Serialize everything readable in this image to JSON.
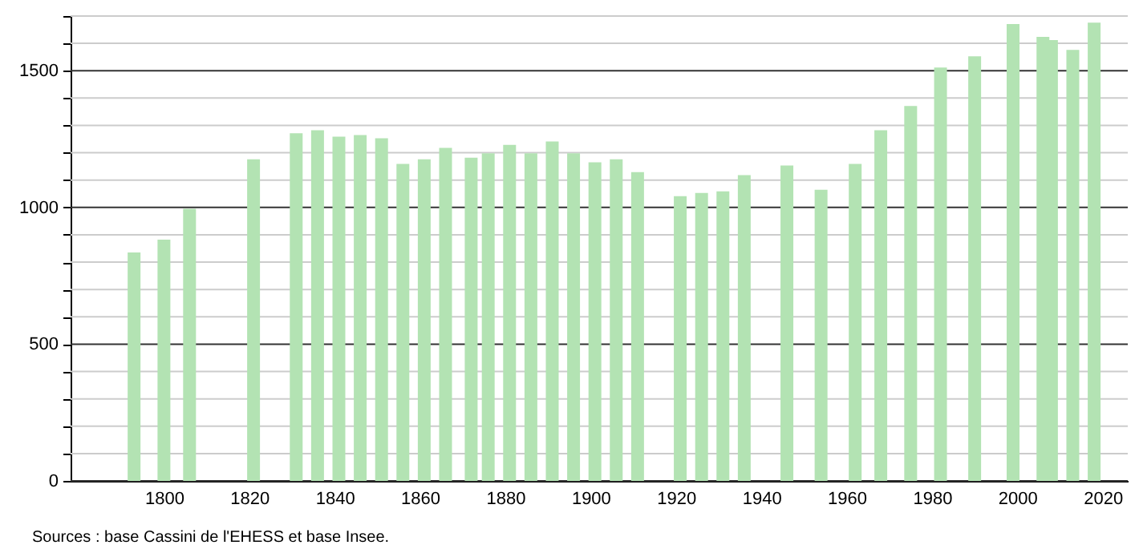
{
  "chart_data": {
    "type": "bar",
    "color": "#b3e3b3",
    "x": [
      1793,
      1800,
      1806,
      1821,
      1831,
      1836,
      1841,
      1846,
      1851,
      1856,
      1861,
      1866,
      1872,
      1876,
      1881,
      1886,
      1891,
      1896,
      1901,
      1906,
      1911,
      1921,
      1926,
      1931,
      1936,
      1946,
      1954,
      1962,
      1968,
      1975,
      1982,
      1990,
      1999,
      2006,
      2008,
      2013,
      2018
    ],
    "values": [
      835,
      882,
      995,
      1176,
      1271,
      1282,
      1259,
      1265,
      1253,
      1159,
      1176,
      1218,
      1182,
      1198,
      1229,
      1198,
      1241,
      1198,
      1165,
      1176,
      1129,
      1041,
      1053,
      1059,
      1118,
      1153,
      1065,
      1159,
      1282,
      1371,
      1512,
      1553,
      1671,
      1624,
      1612,
      1576,
      1676
    ],
    "xlim": [
      1780,
      2024
    ],
    "xticks": [
      1800,
      1820,
      1840,
      1860,
      1880,
      1900,
      1920,
      1940,
      1960,
      1980,
      2000,
      2020
    ],
    "ylim": [
      0,
      1700
    ],
    "yticks": [
      0,
      {
        "value": 100,
        "label": null
      },
      {
        "value": 200,
        "label": null
      },
      {
        "value": 300,
        "label": null
      },
      {
        "value": 400,
        "label": null
      },
      500,
      {
        "value": 600,
        "label": null
      },
      {
        "value": 700,
        "label": null
      },
      {
        "value": 800,
        "label": null
      },
      {
        "value": 900,
        "label": null
      },
      1000,
      {
        "value": 1100,
        "label": null
      },
      {
        "value": 1200,
        "label": null
      },
      {
        "value": 1300,
        "label": null
      },
      {
        "value": 1400,
        "label": null
      },
      1500,
      {
        "value": 1600,
        "label": null
      },
      {
        "value": 1700,
        "label": null
      }
    ],
    "grid": "y",
    "annotations": [
      "Sources : base Cassini de l'EHESS et base Insee."
    ]
  }
}
